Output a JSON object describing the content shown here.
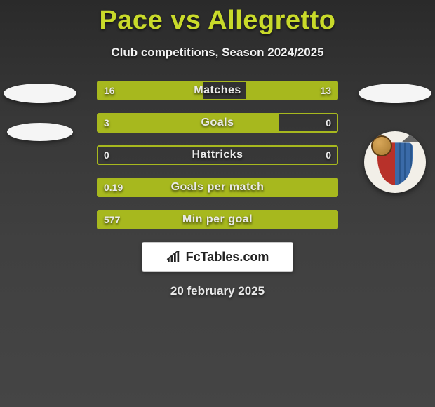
{
  "title": "Pace vs Allegretto",
  "subtitle": "Club competitions, Season 2024/2025",
  "date": "20 february 2025",
  "badge": {
    "text": "FcTables.com"
  },
  "colors": {
    "accent": "#a7b81e",
    "title": "#c9da2a",
    "bg_top": "#2a2a2a",
    "bg_bottom": "#454545"
  },
  "rows": [
    {
      "label": "Matches",
      "left": "16",
      "right": "13",
      "left_pct": 44,
      "right_pct": 38
    },
    {
      "label": "Goals",
      "left": "3",
      "right": "0",
      "left_pct": 76,
      "right_pct": 0
    },
    {
      "label": "Hattricks",
      "left": "0",
      "right": "0",
      "left_pct": 0,
      "right_pct": 0
    },
    {
      "label": "Goals per match",
      "left": "0.19",
      "right": "",
      "left_pct": 100,
      "right_pct": 0
    },
    {
      "label": "Min per goal",
      "left": "577",
      "right": "",
      "left_pct": 100,
      "right_pct": 0
    }
  ]
}
